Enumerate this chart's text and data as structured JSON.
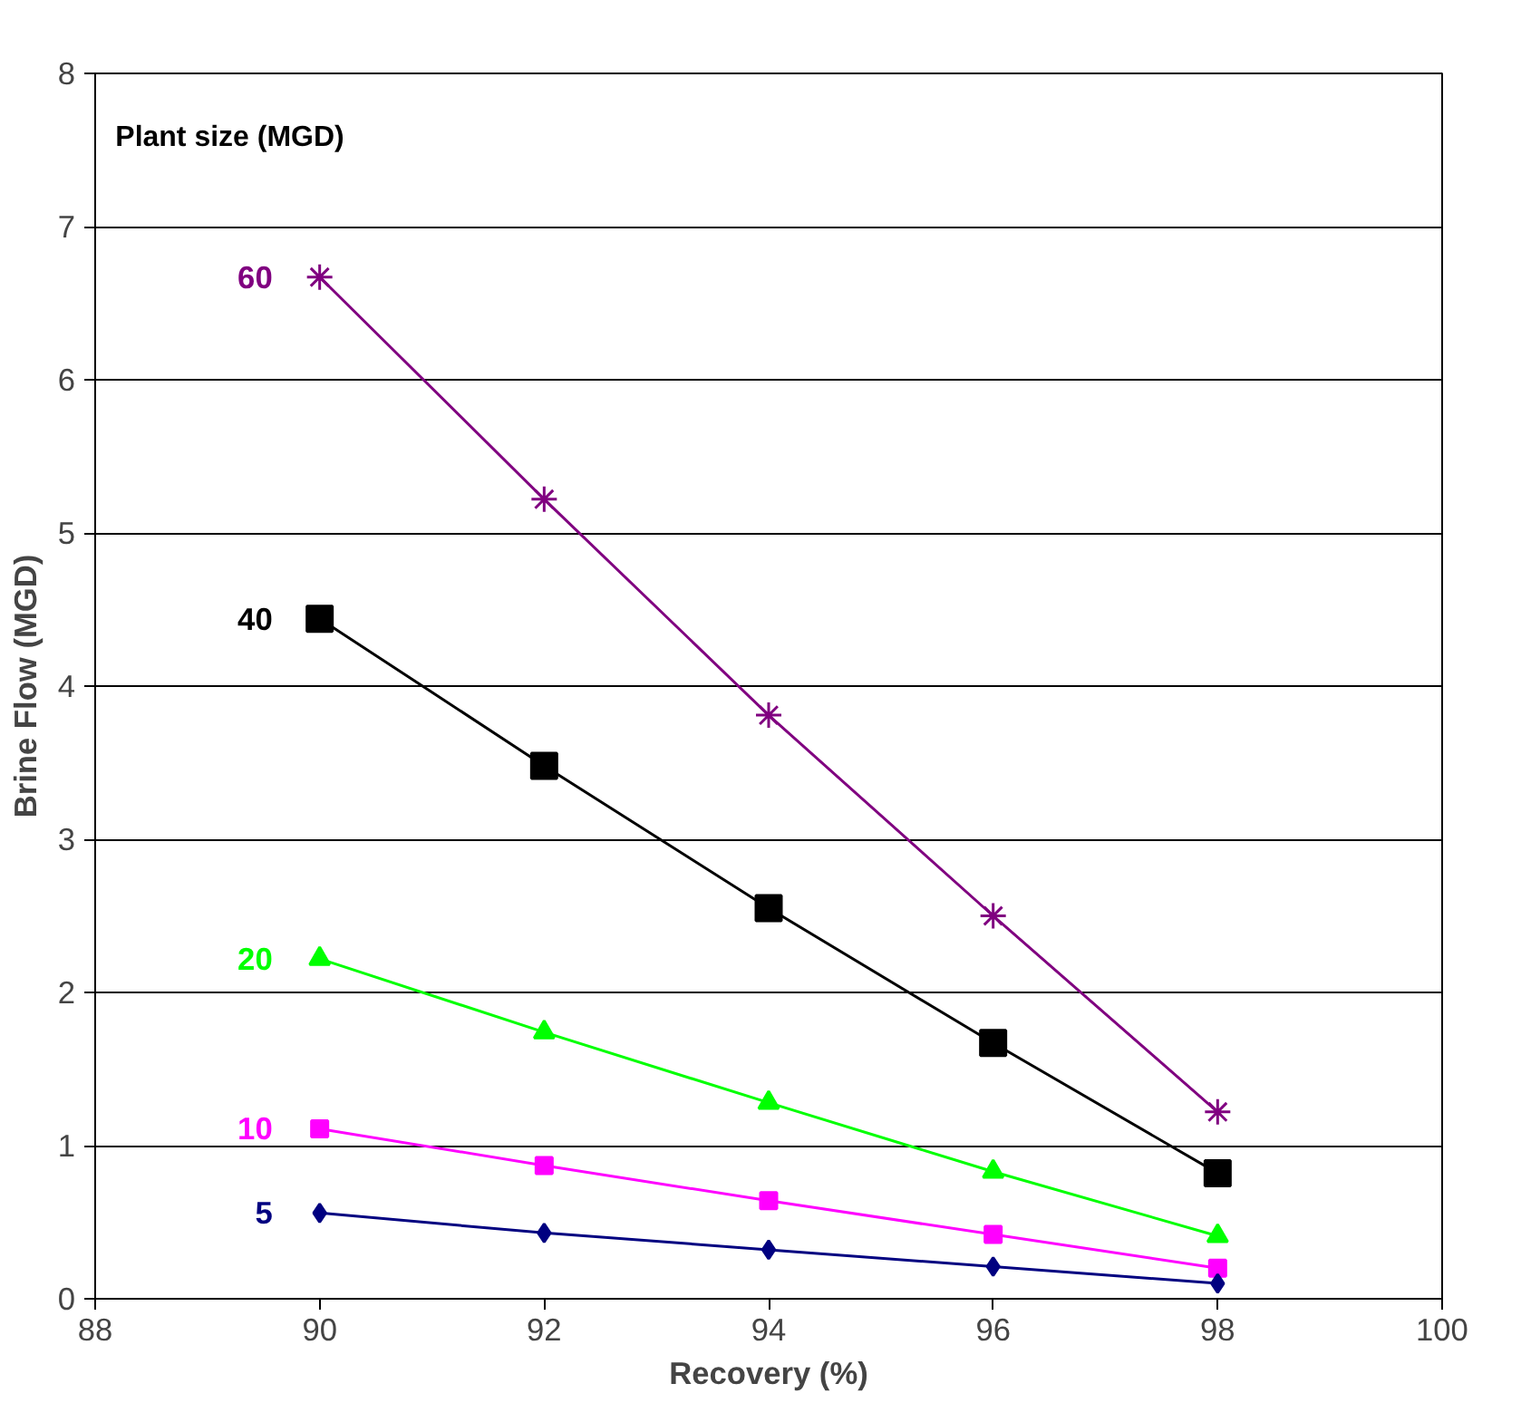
{
  "chart_data": {
    "type": "line",
    "xlabel": "Recovery (%)",
    "ylabel": "Brine Flow (MGD)",
    "legend_title": "Plant size (MGD)",
    "x": [
      90,
      92,
      94,
      96,
      98
    ],
    "series": [
      {
        "name": "60",
        "color": "#800080",
        "marker": "cross",
        "values": [
          6.67,
          5.22,
          3.81,
          2.5,
          1.22
        ]
      },
      {
        "name": "40",
        "color": "#000000",
        "marker": "square",
        "values": [
          4.44,
          3.48,
          2.55,
          1.67,
          0.82
        ]
      },
      {
        "name": "20",
        "color": "#00ff00",
        "marker": "triangle",
        "values": [
          2.22,
          1.74,
          1.28,
          0.83,
          0.41
        ]
      },
      {
        "name": "10",
        "color": "#ff00ff",
        "marker": "square",
        "values": [
          1.11,
          0.87,
          0.64,
          0.42,
          0.2
        ]
      },
      {
        "name": "5",
        "color": "#000080",
        "marker": "diamond",
        "values": [
          0.56,
          0.43,
          0.32,
          0.21,
          0.1
        ]
      }
    ],
    "xlim": [
      88,
      100
    ],
    "xticks": [
      88,
      90,
      92,
      94,
      96,
      98,
      100
    ],
    "ylim": [
      0,
      8
    ],
    "yticks": [
      0,
      1,
      2,
      3,
      4,
      5,
      6,
      7,
      8
    ],
    "grid": "y",
    "legend": false,
    "line_style": "solid"
  }
}
